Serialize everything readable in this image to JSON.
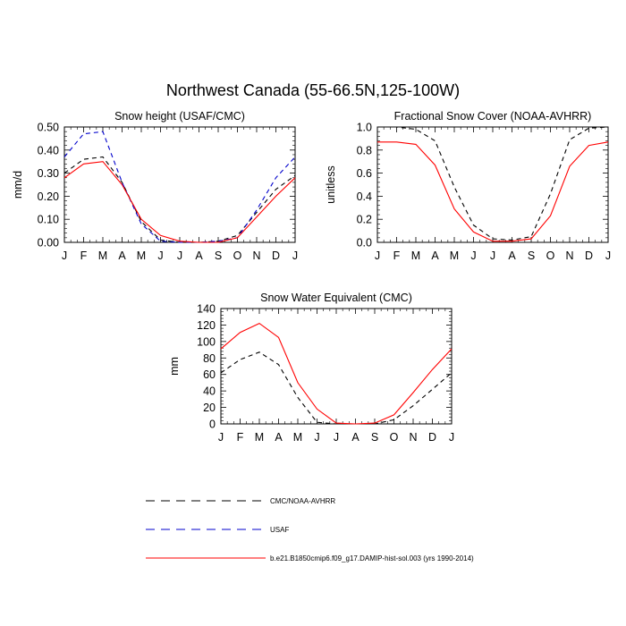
{
  "figure": {
    "title": "Northwest Canada (55-66.5N,125-100W)"
  },
  "chart_data": [
    {
      "type": "line",
      "title": "Snow height (USAF/CMC)",
      "ylabel": "mm/d",
      "xlabel": "",
      "categories": [
        "J",
        "F",
        "M",
        "A",
        "M",
        "J",
        "J",
        "A",
        "S",
        "O",
        "N",
        "D",
        "J"
      ],
      "ylim": [
        0,
        0.5
      ],
      "yticks": [
        "0.00",
        "0.10",
        "0.20",
        "0.30",
        "0.40",
        "0.50"
      ],
      "series": [
        {
          "name": "CMC/NOAA-AVHRR",
          "style": "dashed",
          "color": "#000000",
          "values": [
            0.3,
            0.36,
            0.37,
            0.26,
            0.09,
            0.01,
            0.0,
            0.0,
            0.005,
            0.03,
            0.13,
            0.23,
            0.29
          ]
        },
        {
          "name": "USAF",
          "style": "dashed",
          "color": "#0000cc",
          "values": [
            0.37,
            0.47,
            0.48,
            0.26,
            0.08,
            0.005,
            0.0,
            0.0,
            0.005,
            0.02,
            0.14,
            0.28,
            0.37
          ]
        },
        {
          "name": "b.e21.B1850cmip6.f09_g17.DAMIP-hist-sol.003 (yrs 1990-2014)",
          "style": "solid",
          "color": "#ff0000",
          "values": [
            0.28,
            0.34,
            0.35,
            0.25,
            0.1,
            0.03,
            0.005,
            0.0,
            0.0,
            0.02,
            0.11,
            0.2,
            0.28
          ]
        }
      ]
    },
    {
      "type": "line",
      "title": "Fractional Snow Cover (NOAA-AVHRR)",
      "ylabel": "unitless",
      "xlabel": "",
      "categories": [
        "J",
        "F",
        "M",
        "A",
        "M",
        "J",
        "J",
        "A",
        "S",
        "O",
        "N",
        "D",
        "J"
      ],
      "ylim": [
        0,
        1.0
      ],
      "yticks": [
        "0.0",
        "0.2",
        "0.4",
        "0.6",
        "0.8",
        "1.0"
      ],
      "series": [
        {
          "name": "CMC/NOAA-AVHRR",
          "style": "dashed",
          "color": "#000000",
          "values": [
            1.0,
            1.0,
            0.98,
            0.88,
            0.48,
            0.15,
            0.03,
            0.02,
            0.05,
            0.42,
            0.89,
            0.99,
            1.0
          ]
        },
        {
          "name": "b.e21.B1850cmip6.f09_g17.DAMIP-hist-sol.003 (yrs 1990-2014)",
          "style": "solid",
          "color": "#ff0000",
          "values": [
            0.87,
            0.87,
            0.85,
            0.67,
            0.29,
            0.09,
            0.01,
            0.01,
            0.03,
            0.23,
            0.66,
            0.84,
            0.87
          ]
        }
      ]
    },
    {
      "type": "line",
      "title": "Snow Water Equivalent (CMC)",
      "ylabel": "mm",
      "xlabel": "",
      "categories": [
        "J",
        "F",
        "M",
        "A",
        "M",
        "J",
        "J",
        "A",
        "S",
        "O",
        "N",
        "D",
        "J"
      ],
      "ylim": [
        0,
        140
      ],
      "yticks": [
        "0",
        "20",
        "40",
        "60",
        "80",
        "100",
        "120",
        "140"
      ],
      "series": [
        {
          "name": "CMC/NOAA-AVHRR",
          "style": "dashed",
          "color": "#000000",
          "values": [
            62,
            78,
            87,
            72,
            32,
            2,
            0,
            0,
            0,
            5,
            22,
            42,
            62
          ]
        },
        {
          "name": "b.e21.B1850cmip6.f09_g17.DAMIP-hist-sol.003 (yrs 1990-2014)",
          "style": "solid",
          "color": "#ff0000",
          "values": [
            91,
            111,
            122,
            105,
            50,
            18,
            1,
            0,
            1,
            11,
            38,
            66,
            91
          ]
        }
      ]
    }
  ],
  "legend": [
    {
      "label": "CMC/NOAA-AVHRR",
      "style": "dashed",
      "color": "#000000"
    },
    {
      "label": "USAF",
      "style": "dashed",
      "color": "#0000cc"
    },
    {
      "label": "b.e21.B1850cmip6.f09_g17.DAMIP-hist-sol.003 (yrs 1990-2014)",
      "style": "solid",
      "color": "#ff0000"
    }
  ]
}
